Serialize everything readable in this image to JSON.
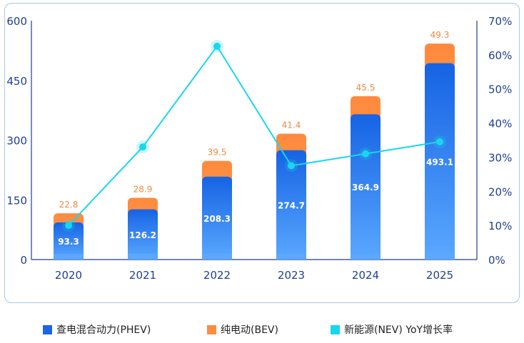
{
  "chart_data": {
    "type": "bar",
    "categories": [
      "2020",
      "2021",
      "2022",
      "2023",
      "2024",
      "2025"
    ],
    "stacked": true,
    "series": [
      {
        "name": "查电混合动力(PHEV)",
        "kind": "bar",
        "axis": "left",
        "values": [
          93.3,
          126.2,
          208.3,
          274.7,
          364.9,
          493.1
        ],
        "color": "#1a66e6"
      },
      {
        "name": "纯电动(BEV)",
        "kind": "bar",
        "axis": "left",
        "values": [
          22.8,
          28.9,
          39.5,
          41.4,
          45.5,
          49.3
        ],
        "color": "#ff8c42"
      },
      {
        "name": "新能源(NEV) YoY增长率",
        "kind": "line",
        "axis": "right",
        "values": [
          10,
          33,
          62.5,
          27.5,
          31,
          34.5
        ],
        "color": "#19d6ee"
      }
    ],
    "left_axis": {
      "ylim": [
        0,
        600
      ],
      "ticks": [
        "0",
        "150",
        "300",
        "450",
        "600"
      ]
    },
    "right_axis": {
      "ylim": [
        0,
        70
      ],
      "ticks": [
        "0%",
        "10%",
        "20%",
        "30%",
        "40%",
        "50%",
        "60%",
        "70%"
      ]
    },
    "legend_position": "bottom",
    "grid": false
  },
  "legend": [
    {
      "label": "查电混合动力(PHEV)",
      "color": "#1a66e6"
    },
    {
      "label": "纯电动(BEV)",
      "color": "#ff8c42"
    },
    {
      "label": "新能源(NEV) YoY增长率",
      "color": "#19d6ee"
    }
  ]
}
